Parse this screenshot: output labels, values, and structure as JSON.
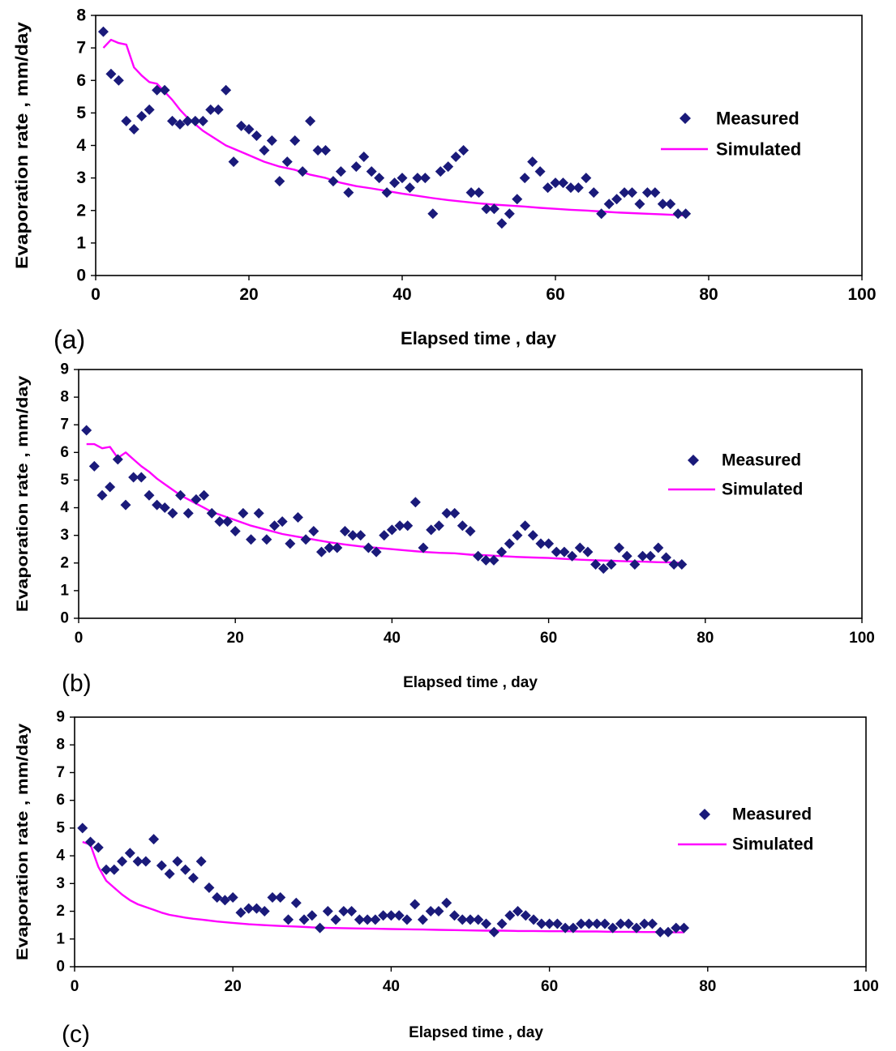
{
  "colors": {
    "measured": "#1a1a7a",
    "simulated": "#ff00ff",
    "axis": "#000000",
    "background": "#ffffff"
  },
  "chart_data": [
    {
      "type": "scatter",
      "panel_label": "(a)",
      "xlabel": "Elapsed time , day",
      "ylabel": "Evaporation rate , mm/day",
      "xlim": [
        0,
        100
      ],
      "ylim": [
        0,
        8
      ],
      "xticks": [
        "0",
        "20",
        "40",
        "60",
        "80",
        "100"
      ],
      "yticks": [
        "0",
        "1",
        "2",
        "3",
        "4",
        "5",
        "6",
        "7",
        "8"
      ],
      "grid": false,
      "legend_position": "right",
      "series": [
        {
          "name": "Measured",
          "marker": "diamond",
          "x": [
            1,
            2,
            3,
            4,
            5,
            6,
            7,
            8,
            9,
            10,
            11,
            12,
            13,
            14,
            15,
            16,
            17,
            18,
            19,
            20,
            21,
            22,
            23,
            24,
            25,
            26,
            27,
            28,
            29,
            30,
            31,
            32,
            33,
            34,
            35,
            36,
            37,
            38,
            39,
            40,
            41,
            42,
            43,
            44,
            45,
            46,
            47,
            48,
            49,
            50,
            51,
            52,
            53,
            54,
            55,
            56,
            57,
            58,
            59,
            60,
            61,
            62,
            63,
            64,
            65,
            66,
            67,
            68,
            69,
            70,
            71,
            72,
            73,
            74,
            75,
            76,
            77
          ],
          "y": [
            7.5,
            6.2,
            6.0,
            4.75,
            4.5,
            4.9,
            5.1,
            5.7,
            5.7,
            4.75,
            4.65,
            4.75,
            4.75,
            4.75,
            5.1,
            5.1,
            5.7,
            3.5,
            4.6,
            4.5,
            4.3,
            3.85,
            4.15,
            2.9,
            3.5,
            4.15,
            3.2,
            4.75,
            3.85,
            3.85,
            2.9,
            3.2,
            2.55,
            3.35,
            3.65,
            3.2,
            3.0,
            2.55,
            2.85,
            3.0,
            2.7,
            3.0,
            3.0,
            1.9,
            3.2,
            3.35,
            3.65,
            3.85,
            2.55,
            2.55,
            2.05,
            2.05,
            1.6,
            1.9,
            2.35,
            3.0,
            3.5,
            3.2,
            2.7,
            2.85,
            2.85,
            2.7,
            2.7,
            3.0,
            2.55,
            1.9,
            2.2,
            2.35,
            2.55,
            2.55,
            2.2,
            2.55,
            2.55,
            2.2,
            2.2,
            1.9,
            1.9
          ]
        },
        {
          "name": "Simulated",
          "x": [
            1,
            2,
            3,
            4,
            5,
            6,
            7,
            8,
            9,
            10,
            11,
            12,
            13,
            14,
            15,
            16,
            17,
            18,
            19,
            20,
            22,
            24,
            26,
            28,
            30,
            32,
            34,
            36,
            38,
            40,
            42,
            44,
            46,
            48,
            50,
            52,
            54,
            56,
            58,
            60,
            62,
            64,
            66,
            68,
            70,
            72,
            74,
            76,
            77
          ],
          "y": [
            7.0,
            7.25,
            7.15,
            7.1,
            6.4,
            6.15,
            5.95,
            5.9,
            5.65,
            5.4,
            5.1,
            4.85,
            4.65,
            4.45,
            4.3,
            4.15,
            4.0,
            3.9,
            3.8,
            3.7,
            3.5,
            3.35,
            3.25,
            3.1,
            3.0,
            2.85,
            2.75,
            2.68,
            2.6,
            2.52,
            2.45,
            2.38,
            2.32,
            2.27,
            2.22,
            2.18,
            2.15,
            2.12,
            2.08,
            2.05,
            2.02,
            2.0,
            1.97,
            1.94,
            1.92,
            1.9,
            1.88,
            1.86,
            1.85
          ]
        }
      ]
    },
    {
      "type": "scatter",
      "panel_label": "(b)",
      "xlabel": "Elapsed time , day",
      "ylabel": "Evaporation rate , mm/day",
      "xlim": [
        0,
        100
      ],
      "ylim": [
        0,
        9
      ],
      "xticks": [
        "0",
        "20",
        "40",
        "60",
        "80",
        "100"
      ],
      "yticks": [
        "0",
        "1",
        "2",
        "3",
        "4",
        "5",
        "6",
        "7",
        "8",
        "9"
      ],
      "grid": false,
      "legend_position": "right",
      "series": [
        {
          "name": "Measured",
          "marker": "diamond",
          "x": [
            1,
            2,
            3,
            4,
            5,
            6,
            7,
            8,
            9,
            10,
            11,
            12,
            13,
            14,
            15,
            16,
            17,
            18,
            19,
            20,
            21,
            22,
            23,
            24,
            25,
            26,
            27,
            28,
            29,
            30,
            31,
            32,
            33,
            34,
            35,
            36,
            37,
            38,
            39,
            40,
            41,
            42,
            43,
            44,
            45,
            46,
            47,
            48,
            49,
            50,
            51,
            52,
            53,
            54,
            55,
            56,
            57,
            58,
            59,
            60,
            61,
            62,
            63,
            64,
            65,
            66,
            67,
            68,
            69,
            70,
            71,
            72,
            73,
            74,
            75,
            76,
            77
          ],
          "y": [
            6.8,
            5.5,
            4.45,
            4.75,
            5.75,
            4.1,
            5.1,
            5.1,
            4.45,
            4.1,
            4.0,
            3.8,
            4.45,
            3.8,
            4.3,
            4.45,
            3.8,
            3.5,
            3.5,
            3.15,
            3.8,
            2.85,
            3.8,
            2.85,
            3.35,
            3.5,
            2.7,
            3.65,
            2.85,
            3.15,
            2.4,
            2.55,
            2.55,
            3.15,
            3.0,
            3.0,
            2.55,
            2.4,
            3.0,
            3.2,
            3.35,
            3.35,
            4.2,
            2.55,
            3.2,
            3.35,
            3.8,
            3.8,
            3.35,
            3.15,
            2.25,
            2.1,
            2.1,
            2.4,
            2.7,
            3.0,
            3.35,
            3.0,
            2.7,
            2.7,
            2.4,
            2.4,
            2.25,
            2.55,
            2.4,
            1.95,
            1.8,
            1.95,
            2.55,
            2.25,
            1.95,
            2.25,
            2.25,
            2.55,
            2.2,
            1.95,
            1.95
          ]
        },
        {
          "name": "Simulated",
          "x": [
            1,
            2,
            3,
            4,
            5,
            6,
            7,
            8,
            9,
            10,
            11,
            12,
            13,
            14,
            15,
            16,
            17,
            18,
            19,
            20,
            22,
            24,
            26,
            28,
            30,
            32,
            34,
            36,
            38,
            40,
            42,
            44,
            46,
            48,
            50,
            52,
            54,
            56,
            58,
            60,
            62,
            64,
            66,
            68,
            70,
            72,
            74,
            76,
            77
          ],
          "y": [
            6.3,
            6.3,
            6.15,
            6.2,
            5.8,
            6.0,
            5.75,
            5.5,
            5.3,
            5.05,
            4.85,
            4.65,
            4.45,
            4.3,
            4.15,
            4.0,
            3.85,
            3.75,
            3.65,
            3.55,
            3.35,
            3.2,
            3.05,
            2.95,
            2.85,
            2.75,
            2.67,
            2.6,
            2.55,
            2.5,
            2.45,
            2.4,
            2.37,
            2.35,
            2.3,
            2.28,
            2.25,
            2.22,
            2.2,
            2.18,
            2.15,
            2.12,
            2.1,
            2.08,
            2.06,
            2.05,
            2.03,
            2.02,
            2.0
          ]
        }
      ]
    },
    {
      "type": "scatter",
      "panel_label": "(c)",
      "xlabel": "Elapsed time , day",
      "ylabel": "Evaporation rate , mm/day",
      "xlim": [
        0,
        100
      ],
      "ylim": [
        0,
        9
      ],
      "xticks": [
        "0",
        "20",
        "40",
        "60",
        "80",
        "100"
      ],
      "yticks": [
        "0",
        "1",
        "2",
        "3",
        "4",
        "5",
        "6",
        "7",
        "8",
        "9"
      ],
      "grid": false,
      "legend_position": "right",
      "series": [
        {
          "name": "Measured",
          "marker": "diamond",
          "x": [
            1,
            2,
            3,
            4,
            5,
            6,
            7,
            8,
            9,
            10,
            11,
            12,
            13,
            14,
            15,
            16,
            17,
            18,
            19,
            20,
            21,
            22,
            23,
            24,
            25,
            26,
            27,
            28,
            29,
            30,
            31,
            32,
            33,
            34,
            35,
            36,
            37,
            38,
            39,
            40,
            41,
            42,
            43,
            44,
            45,
            46,
            47,
            48,
            49,
            50,
            51,
            52,
            53,
            54,
            55,
            56,
            57,
            58,
            59,
            60,
            61,
            62,
            63,
            64,
            65,
            66,
            67,
            68,
            69,
            70,
            71,
            72,
            73,
            74,
            75,
            76,
            77
          ],
          "y": [
            5.0,
            4.5,
            4.3,
            3.5,
            3.5,
            3.8,
            4.1,
            3.8,
            3.8,
            4.6,
            3.65,
            3.35,
            3.8,
            3.5,
            3.2,
            3.8,
            2.85,
            2.5,
            2.4,
            2.5,
            1.95,
            2.1,
            2.1,
            2.0,
            2.5,
            2.5,
            1.7,
            2.3,
            1.7,
            1.85,
            1.4,
            2.0,
            1.7,
            2.0,
            2.0,
            1.7,
            1.7,
            1.7,
            1.85,
            1.85,
            1.85,
            1.7,
            2.25,
            1.7,
            2.0,
            2.0,
            2.3,
            1.85,
            1.7,
            1.7,
            1.7,
            1.55,
            1.25,
            1.55,
            1.85,
            2.0,
            1.85,
            1.7,
            1.55,
            1.55,
            1.55,
            1.4,
            1.4,
            1.55,
            1.55,
            1.55,
            1.55,
            1.4,
            1.55,
            1.55,
            1.4,
            1.55,
            1.55,
            1.25,
            1.25,
            1.4,
            1.4
          ]
        },
        {
          "name": "Simulated",
          "x": [
            1,
            2,
            3,
            4,
            5,
            6,
            7,
            8,
            9,
            10,
            11,
            12,
            13,
            14,
            15,
            16,
            18,
            20,
            22,
            24,
            26,
            28,
            30,
            32,
            34,
            36,
            38,
            40,
            42,
            44,
            46,
            48,
            50,
            52,
            54,
            56,
            58,
            60,
            62,
            64,
            66,
            68,
            70,
            72,
            74,
            76,
            77
          ],
          "y": [
            4.5,
            4.4,
            3.6,
            3.1,
            2.85,
            2.6,
            2.4,
            2.25,
            2.15,
            2.05,
            1.95,
            1.87,
            1.82,
            1.77,
            1.73,
            1.7,
            1.63,
            1.58,
            1.53,
            1.5,
            1.47,
            1.45,
            1.42,
            1.4,
            1.39,
            1.38,
            1.37,
            1.36,
            1.35,
            1.34,
            1.33,
            1.32,
            1.31,
            1.3,
            1.3,
            1.29,
            1.29,
            1.28,
            1.28,
            1.27,
            1.27,
            1.26,
            1.26,
            1.25,
            1.25,
            1.24,
            1.24
          ]
        }
      ]
    }
  ]
}
